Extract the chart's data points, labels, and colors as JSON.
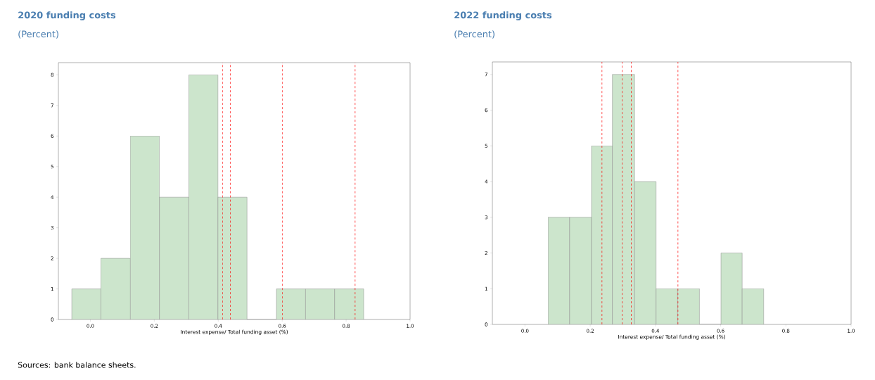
{
  "chart_data": [
    {
      "type": "histogram",
      "title": "2020 funding costs",
      "subtitle": "(Percent)",
      "xlabel": "Interest expense/ Total funding asset (%)",
      "bins": [
        -0.058,
        0.033,
        0.125,
        0.216,
        0.308,
        0.399,
        0.49,
        0.582,
        0.673,
        0.764,
        0.855
      ],
      "values": [
        1,
        2,
        6,
        4,
        8,
        4,
        0,
        1,
        1,
        1
      ],
      "color": "#cce5cc",
      "xlim": [
        -0.1,
        1.0
      ],
      "ylim": [
        0,
        8.4
      ],
      "xticks": [
        {
          "value": 0,
          "label": "0.0"
        },
        {
          "value": 0.2,
          "label": "0.2"
        },
        {
          "value": 0.4,
          "label": "0.4"
        },
        {
          "value": 0.6,
          "label": "0.6"
        },
        {
          "value": 0.8,
          "label": "0.8"
        },
        {
          "value": 1.0,
          "label": "1.0"
        }
      ],
      "yticks": [
        0,
        1,
        2,
        3,
        4,
        5,
        6,
        7,
        8
      ],
      "ref_lines": [
        {
          "axis": "x",
          "value": 0.414,
          "color": "#ff0000",
          "line_style": "dashed"
        },
        {
          "axis": "x",
          "value": 0.438,
          "color": "#ff0000",
          "line_style": "dashed"
        },
        {
          "axis": "x",
          "value": 0.601,
          "color": "#ff0000",
          "line_style": "dashed"
        },
        {
          "axis": "x",
          "value": 0.828,
          "color": "#ff0000",
          "line_style": "dashed"
        }
      ],
      "annotations": [
        "Sources: bank balance sheets."
      ]
    },
    {
      "type": "histogram",
      "title": "2022 funding costs",
      "subtitle": "(Percent)",
      "xlabel": "Interest expense/ Total funding asset (%)",
      "bins": [
        0.071,
        0.137,
        0.204,
        0.268,
        0.336,
        0.402,
        0.468,
        0.535,
        0.601,
        0.666,
        0.732
      ],
      "values": [
        3,
        3,
        5,
        7,
        4,
        1,
        1,
        0,
        2,
        1
      ],
      "color": "#cce5cc",
      "xlim": [
        -0.1,
        1.0
      ],
      "ylim": [
        0,
        7.35
      ],
      "xticks": [
        {
          "value": 0,
          "label": "0.0"
        },
        {
          "value": 0.2,
          "label": "0.2"
        },
        {
          "value": 0.4,
          "label": "0.4"
        },
        {
          "value": 0.6,
          "label": "0.6"
        },
        {
          "value": 0.8,
          "label": "0.8"
        },
        {
          "value": 1.0,
          "label": "1.0"
        }
      ],
      "yticks": [
        0,
        1,
        2,
        3,
        4,
        5,
        6,
        7
      ],
      "ref_lines": [
        {
          "axis": "x",
          "value": 0.236,
          "color": "#ff0000",
          "line_style": "dashed"
        },
        {
          "axis": "x",
          "value": 0.298,
          "color": "#ff0000",
          "line_style": "dashed"
        },
        {
          "axis": "x",
          "value": 0.326,
          "color": "#ff0000",
          "line_style": "dashed"
        },
        {
          "axis": "x",
          "value": 0.469,
          "color": "#ff0000",
          "line_style": "dashed"
        }
      ]
    }
  ]
}
